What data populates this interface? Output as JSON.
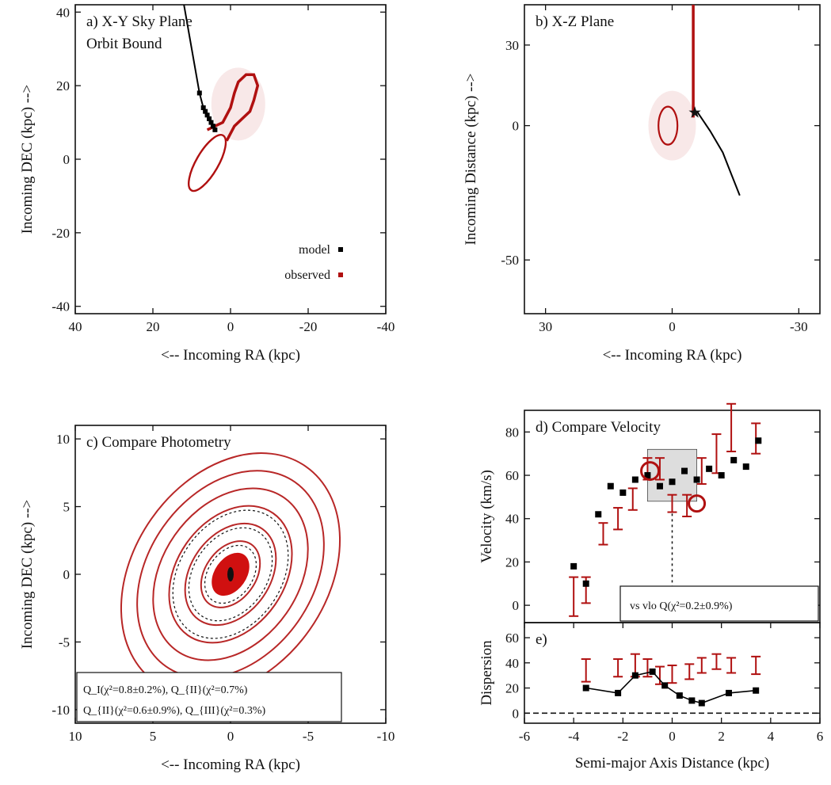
{
  "chart_data": [
    {
      "id": "a",
      "type": "scatter",
      "title": "a) X-Y Sky Plane",
      "subtitle": "Orbit Bound",
      "xlabel": "<-- Incoming RA (kpc)",
      "ylabel": "Incoming DEC (kpc) -->",
      "xlim": [
        40,
        -40
      ],
      "ylim": [
        -42,
        42
      ],
      "xticks": [
        "40",
        "20",
        "0",
        "-20",
        "-40"
      ],
      "yticks": [
        "-40",
        "-20",
        "0",
        "20",
        "40"
      ],
      "legend": [
        "model",
        "observed"
      ],
      "legend_position": "bottom-right",
      "series": [
        {
          "name": "model",
          "color": "#000000",
          "x": [
            12.0,
            10.0,
            9.0,
            8.0,
            7.0,
            6.5,
            6.0,
            5.5,
            5.0,
            4.5,
            4.0
          ],
          "y": [
            42.0,
            30.0,
            24.0,
            18.0,
            14.0,
            13.0,
            12.0,
            11.0,
            10.0,
            9.0,
            8.0
          ]
        },
        {
          "name": "observed",
          "color": "#b01010",
          "x": [
            6.0,
            4.0,
            2.0,
            0.0,
            -1.0,
            -2.0,
            -4.0,
            -6.0,
            -7.0,
            -6.0,
            -5.0,
            -3.0,
            -1.0,
            1.0
          ],
          "y": [
            8.0,
            9.0,
            10.0,
            14.0,
            18.0,
            21.0,
            23.0,
            23.0,
            20.0,
            16.0,
            13.0,
            11.0,
            9.0,
            5.0
          ]
        }
      ]
    },
    {
      "id": "b",
      "type": "line",
      "title": "b) X-Z Plane",
      "xlabel": "<-- Incoming RA (kpc)",
      "ylabel": "Incoming Distance (kpc) -->",
      "xlim": [
        35,
        -35
      ],
      "ylim": [
        -70,
        45
      ],
      "xticks": [
        "30",
        "0",
        "-30"
      ],
      "yticks": [
        "-50",
        "0",
        "30"
      ],
      "series": [
        {
          "name": "model",
          "color": "#000000",
          "x": [
            -6.0,
            -9.0,
            -12.0,
            -14.0,
            -16.0
          ],
          "y": [
            5.0,
            -2.0,
            -10.0,
            -18.0,
            -26.0
          ]
        },
        {
          "name": "observed",
          "color": "#b01010",
          "x": [
            -5.0,
            -5.0,
            -5.0,
            -5.0
          ],
          "y": [
            45.0,
            25.0,
            10.0,
            3.0
          ]
        }
      ]
    },
    {
      "id": "c",
      "type": "heatmap",
      "title": "c) Compare Photometry",
      "xlabel": "<-- Incoming RA (kpc)",
      "ylabel": "Incoming DEC (kpc) -->",
      "xlim": [
        10,
        -10
      ],
      "ylim": [
        -11,
        11
      ],
      "xticks": [
        "10",
        "5",
        "0",
        "-5",
        "-10"
      ],
      "yticks": [
        "-10",
        "-5",
        "0",
        "5",
        "10"
      ],
      "contour_levels": [
        1,
        2,
        3,
        4,
        5,
        6
      ],
      "annotation_line1": "Q_I(χ²=0.8±0.2%), Q_{II}(χ²=0.7%)",
      "annotation_line2": "Q_{II}(χ²=0.6±0.9%), Q_{III}(χ²=0.3%)"
    },
    {
      "id": "d",
      "type": "scatter",
      "title": "d) Compare Velocity",
      "xlabel": "",
      "ylabel": "Velocity (km/s)",
      "xlim": [
        -6,
        6
      ],
      "ylim": [
        -8,
        90
      ],
      "yticks": [
        "0",
        "20",
        "40",
        "60",
        "80"
      ],
      "annotation": "vs vlo Q(χ²=0.2±0.9%)",
      "series": [
        {
          "name": "model",
          "color": "#000000",
          "x": [
            -4.0,
            -3.5,
            -3.0,
            -2.5,
            -2.0,
            -1.5,
            -1.0,
            -0.5,
            0.0,
            0.5,
            1.0,
            1.5,
            2.0,
            2.5,
            3.0,
            3.5
          ],
          "y": [
            18.0,
            10.0,
            42.0,
            55.0,
            52.0,
            58.0,
            60.0,
            55.0,
            57.0,
            62.0,
            58.0,
            63.0,
            60.0,
            67.0,
            64.0,
            76.0
          ]
        },
        {
          "name": "observed",
          "color": "#b01010",
          "x": [
            -4.0,
            -3.5,
            -2.8,
            -2.2,
            -1.6,
            -1.0,
            -0.5,
            0.0,
            0.6,
            1.2,
            1.8,
            2.4,
            3.4
          ],
          "y": [
            4.0,
            7.0,
            33.0,
            40.0,
            49.0,
            63.0,
            63.0,
            47.0,
            46.0,
            62.0,
            70.0,
            82.0,
            77.0
          ],
          "err": [
            9.0,
            6.0,
            5.0,
            5.0,
            5.0,
            5.0,
            5.0,
            4.0,
            5.0,
            6.0,
            9.0,
            11.0,
            7.0
          ]
        }
      ]
    },
    {
      "id": "e",
      "type": "scatter",
      "title": "e)",
      "xlabel": "Semi-major Axis Distance (kpc)",
      "ylabel": "Dispersion",
      "xlim": [
        -6,
        6
      ],
      "ylim": [
        -8,
        72
      ],
      "xticks": [
        "-6",
        "-4",
        "-2",
        "0",
        "2",
        "4",
        "6"
      ],
      "yticks": [
        "0",
        "20",
        "40",
        "60"
      ],
      "series": [
        {
          "name": "model",
          "color": "#000000",
          "x": [
            -3.5,
            -2.2,
            -1.5,
            -0.8,
            -0.3,
            0.3,
            0.8,
            1.2,
            2.3,
            3.4
          ],
          "y": [
            20.0,
            16.0,
            30.0,
            33.0,
            22.0,
            14.0,
            10.0,
            8.0,
            16.0,
            18.0
          ]
        },
        {
          "name": "observed",
          "color": "#b01010",
          "x": [
            -3.5,
            -2.2,
            -1.5,
            -1.0,
            -0.5,
            0.0,
            0.7,
            1.2,
            1.8,
            2.4,
            3.4
          ],
          "y": [
            34.0,
            36.0,
            38.0,
            36.0,
            30.0,
            31.0,
            33.0,
            38.0,
            41.0,
            38.0,
            38.0
          ],
          "err": [
            9.0,
            7.0,
            9.0,
            7.0,
            7.0,
            7.0,
            6.0,
            6.0,
            6.0,
            6.0,
            7.0
          ]
        }
      ]
    }
  ]
}
